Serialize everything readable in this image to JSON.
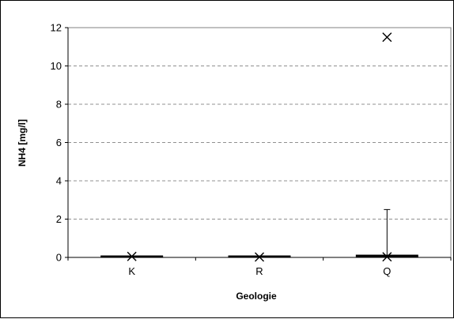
{
  "chart_data": {
    "type": "box",
    "title": "",
    "xlabel": "Geologie",
    "ylabel": "NH4 [mg/l]",
    "ylim": [
      0,
      12
    ],
    "yticks": [
      "0",
      "2",
      "4",
      "6",
      "8",
      "10",
      "12"
    ],
    "categories": [
      "K",
      "R",
      "Q"
    ],
    "grid": "horizontal-dashed",
    "boxes": [
      {
        "category": "K",
        "min": 0,
        "q1": 0,
        "median": 0.02,
        "q3": 0.04,
        "max": 0.05,
        "outliers": [
          0.05
        ]
      },
      {
        "category": "R",
        "min": 0,
        "q1": 0,
        "median": 0.02,
        "q3": 0.04,
        "max": 0.05,
        "outliers": [
          0.02
        ]
      },
      {
        "category": "Q",
        "min": 0,
        "q1": 0,
        "median": 0.03,
        "q3": 0.08,
        "max": 2.5,
        "outliers": [
          0.03,
          11.5
        ]
      }
    ]
  }
}
